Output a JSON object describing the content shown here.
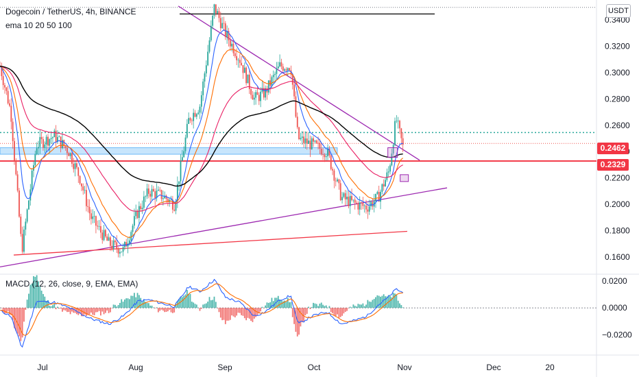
{
  "header": {
    "title": "Dogecoin / TetherUS, 4h, BINANCE",
    "indicator": "ema 10 20 50 100",
    "currency": "USDT"
  },
  "macd_label": "MACD (12, 26, close, 9, EMA, EMA)",
  "price_tags": [
    "0.2462",
    "0.2329"
  ],
  "colors": {
    "bull": "#26a69a",
    "bear": "#ef5350",
    "ema10": "#2962ff",
    "ema20": "#ff6d00",
    "ema50": "#e91e63",
    "ema100": "#000000",
    "trend": "#9c27b0",
    "support": "#f23645",
    "level": "#f23645",
    "zone": "#2196f3",
    "macd": "#2962ff",
    "signal": "#ff6d00"
  },
  "chart_data": [
    {
      "type": "candlestick",
      "x_ticks": [
        "Jul",
        "Aug",
        "Sep",
        "Oct",
        "Nov",
        "Dec",
        "20"
      ],
      "y_ticks": [
        0.16,
        0.18,
        0.2,
        0.22,
        0.24,
        0.26,
        0.28,
        0.3,
        0.32,
        0.34
      ],
      "y_tick_labels": [
        "0.1600",
        "0.1800",
        "0.2000",
        "0.2200",
        "0.2400",
        "0.2600",
        "0.2800",
        "0.3000",
        "0.3200",
        "0.3400"
      ],
      "ylim": [
        0.148,
        0.352
      ],
      "price_path": [
        [
          0.0,
          0.305
        ],
        [
          0.015,
          0.27
        ],
        [
          0.03,
          0.165
        ],
        [
          0.05,
          0.245
        ],
        [
          0.075,
          0.252
        ],
        [
          0.095,
          0.24
        ],
        [
          0.11,
          0.22
        ],
        [
          0.125,
          0.19
        ],
        [
          0.15,
          0.17
        ],
        [
          0.17,
          0.165
        ],
        [
          0.19,
          0.195
        ],
        [
          0.205,
          0.21
        ],
        [
          0.225,
          0.206
        ],
        [
          0.24,
          0.2
        ],
        [
          0.26,
          0.265
        ],
        [
          0.275,
          0.275
        ],
        [
          0.295,
          0.35
        ],
        [
          0.31,
          0.33
        ],
        [
          0.33,
          0.31
        ],
        [
          0.35,
          0.28
        ],
        [
          0.365,
          0.285
        ],
        [
          0.385,
          0.305
        ],
        [
          0.4,
          0.305
        ],
        [
          0.41,
          0.25
        ],
        [
          0.43,
          0.245
        ],
        [
          0.45,
          0.24
        ],
        [
          0.47,
          0.205
        ],
        [
          0.49,
          0.2
        ],
        [
          0.505,
          0.198
        ],
        [
          0.52,
          0.205
        ],
        [
          0.535,
          0.225
        ],
        [
          0.545,
          0.265
        ],
        [
          0.555,
          0.242
        ]
      ],
      "last_price": 0.2462,
      "level": 0.2329,
      "resistance_high": 0.3445,
      "zone": [
        0.238,
        0.243
      ]
    },
    {
      "type": "line",
      "title": "MACD (12, 26, close, 9, EMA, EMA)",
      "y_ticks": [
        0.02,
        0.0,
        -0.02
      ],
      "y_tick_labels": [
        "0.0200",
        "0.0000",
        "−0.0200"
      ],
      "ylim": [
        -0.035,
        0.025
      ],
      "macd_path": [
        [
          0.0,
          -0.002
        ],
        [
          0.015,
          -0.006
        ],
        [
          0.03,
          -0.03
        ],
        [
          0.05,
          0.005
        ],
        [
          0.075,
          0.004
        ],
        [
          0.095,
          0.0
        ],
        [
          0.11,
          -0.004
        ],
        [
          0.125,
          -0.008
        ],
        [
          0.15,
          -0.012
        ],
        [
          0.17,
          -0.006
        ],
        [
          0.19,
          0.005
        ],
        [
          0.205,
          0.006
        ],
        [
          0.225,
          0.003
        ],
        [
          0.24,
          0.001
        ],
        [
          0.26,
          0.016
        ],
        [
          0.275,
          0.012
        ],
        [
          0.295,
          0.021
        ],
        [
          0.31,
          0.008
        ],
        [
          0.33,
          0.004
        ],
        [
          0.35,
          -0.006
        ],
        [
          0.365,
          -0.003
        ],
        [
          0.385,
          0.006
        ],
        [
          0.4,
          0.009
        ],
        [
          0.41,
          -0.012
        ],
        [
          0.43,
          -0.006
        ],
        [
          0.45,
          -0.003
        ],
        [
          0.47,
          -0.012
        ],
        [
          0.49,
          -0.009
        ],
        [
          0.505,
          -0.006
        ],
        [
          0.52,
          0.002
        ],
        [
          0.535,
          0.008
        ],
        [
          0.545,
          0.014
        ],
        [
          0.555,
          0.011
        ]
      ]
    }
  ]
}
